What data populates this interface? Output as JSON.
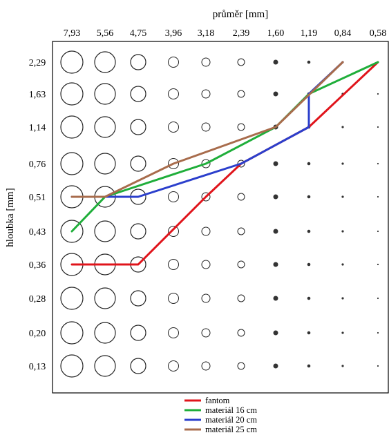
{
  "chart_data": {
    "type": "line",
    "title": "",
    "xlabel": "průměr [mm]",
    "ylabel": "hloubka [mm]",
    "x_ticks": [
      "7,93",
      "5,56",
      "4,75",
      "3,96",
      "3,18",
      "2,39",
      "1,60",
      "1,19",
      "0,84",
      "0,58"
    ],
    "y_ticks": [
      "2,29",
      "1,63",
      "1,14",
      "0,76",
      "0,51",
      "0,43",
      "0,36",
      "0,28",
      "0,20",
      "0,13"
    ],
    "grid": false,
    "legend_position": "bottom",
    "series": [
      {
        "name": "fantom",
        "color": "#e0141b",
        "points": [
          {
            "x": "7,93",
            "y": "0,36"
          },
          {
            "x": "4,75",
            "y": "0,36"
          },
          {
            "x": "3,18",
            "y": "0,51"
          },
          {
            "x": "2,39",
            "y": "0,76"
          },
          {
            "x": "1,19",
            "y": "1,14"
          },
          {
            "x": "0,58",
            "y": "2,29"
          }
        ]
      },
      {
        "name": "materiál 16 cm",
        "color": "#1fae3a",
        "points": [
          {
            "x": "7,93",
            "y": "0,43"
          },
          {
            "x": "5,56",
            "y": "0,51"
          },
          {
            "x": "3,18",
            "y": "0,76"
          },
          {
            "x": "1,60",
            "y": "1,14"
          },
          {
            "x": "1,19",
            "y": "1,63"
          },
          {
            "x": "0,58",
            "y": "2,29"
          }
        ]
      },
      {
        "name": "materiál 20 cm",
        "color": "#2b3fcc",
        "points": [
          {
            "x": "7,93",
            "y": "0,51"
          },
          {
            "x": "4,75",
            "y": "0,51"
          },
          {
            "x": "2,39",
            "y": "0,76"
          },
          {
            "x": "1,19",
            "y": "1,14"
          },
          {
            "x": "1,19",
            "y": "1,63"
          },
          {
            "x": "0,84",
            "y": "2,29"
          }
        ]
      },
      {
        "name": "materiál 25 cm",
        "color": "#a86c4c",
        "points": [
          {
            "x": "7,93",
            "y": "0,51"
          },
          {
            "x": "5,56",
            "y": "0,51"
          },
          {
            "x": "3,96",
            "y": "0,76"
          },
          {
            "x": "1,60",
            "y": "1,14"
          },
          {
            "x": "0,84",
            "y": "2,29"
          }
        ]
      }
    ]
  }
}
